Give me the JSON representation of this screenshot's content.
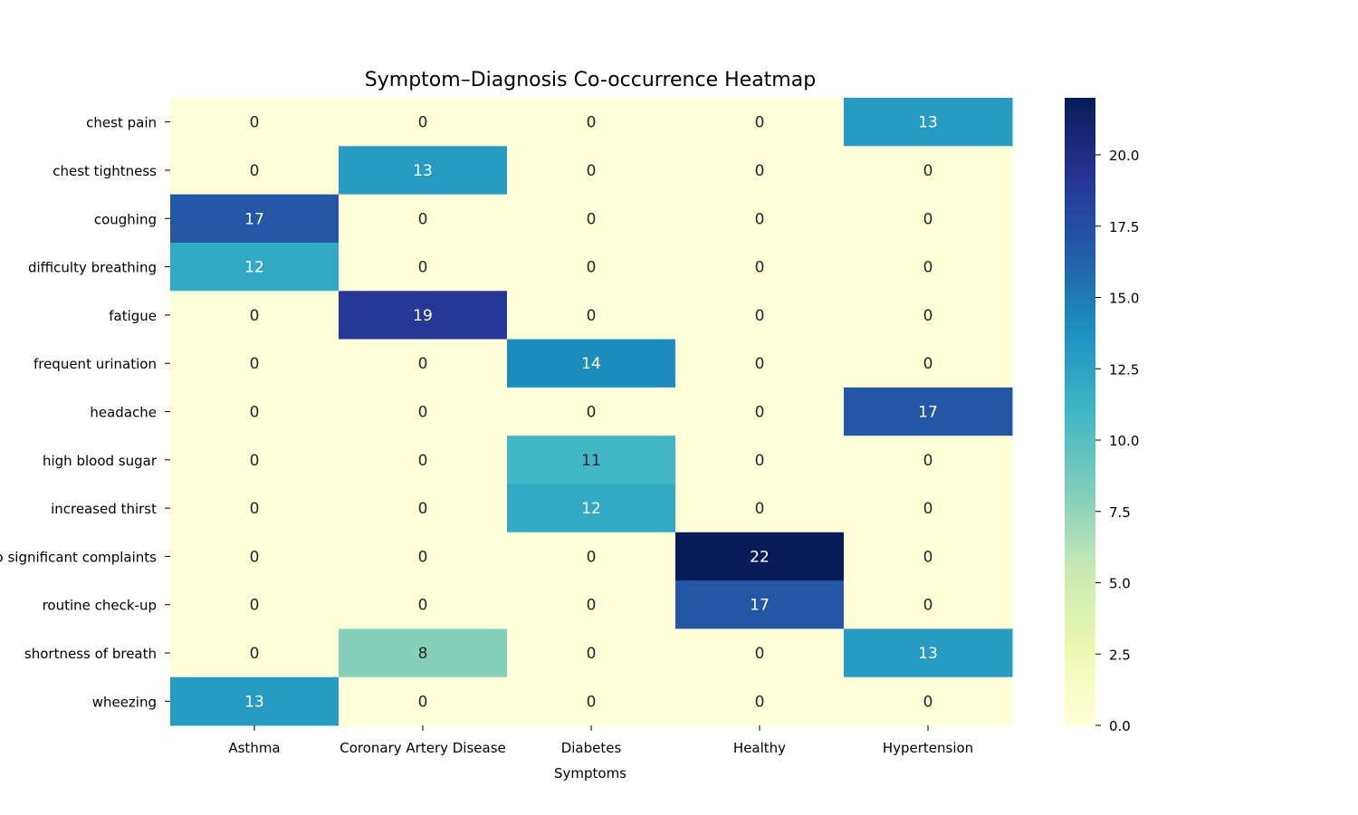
{
  "chart_data": {
    "type": "heatmap",
    "title": "Symptom–Diagnosis Co-occurrence Heatmap",
    "xlabel": "Symptoms",
    "ylabel": "",
    "x_categories": [
      "Asthma",
      "Coronary Artery Disease",
      "Diabetes",
      "Healthy",
      "Hypertension"
    ],
    "y_categories": [
      "chest pain",
      "chest tightness",
      "coughing",
      "difficulty breathing",
      "fatigue",
      "frequent urination",
      "headache",
      "high blood sugar",
      "increased thirst",
      "no significant complaints",
      "routine check-up",
      "shortness of breath",
      "wheezing"
    ],
    "values": [
      [
        0,
        0,
        0,
        0,
        13
      ],
      [
        0,
        13,
        0,
        0,
        0
      ],
      [
        17,
        0,
        0,
        0,
        0
      ],
      [
        12,
        0,
        0,
        0,
        0
      ],
      [
        0,
        19,
        0,
        0,
        0
      ],
      [
        0,
        0,
        14,
        0,
        0
      ],
      [
        0,
        0,
        0,
        0,
        17
      ],
      [
        0,
        0,
        11,
        0,
        0
      ],
      [
        0,
        0,
        12,
        0,
        0
      ],
      [
        0,
        0,
        0,
        22,
        0
      ],
      [
        0,
        0,
        0,
        17,
        0
      ],
      [
        0,
        8,
        0,
        0,
        13
      ],
      [
        13,
        0,
        0,
        0,
        0
      ]
    ],
    "colormap": "YlGnBu",
    "color_range": [
      0,
      22
    ],
    "colorbar_ticks": [
      "0.0",
      "2.5",
      "5.0",
      "7.5",
      "10.0",
      "12.5",
      "15.0",
      "17.5",
      "20.0"
    ],
    "annotate": true
  }
}
